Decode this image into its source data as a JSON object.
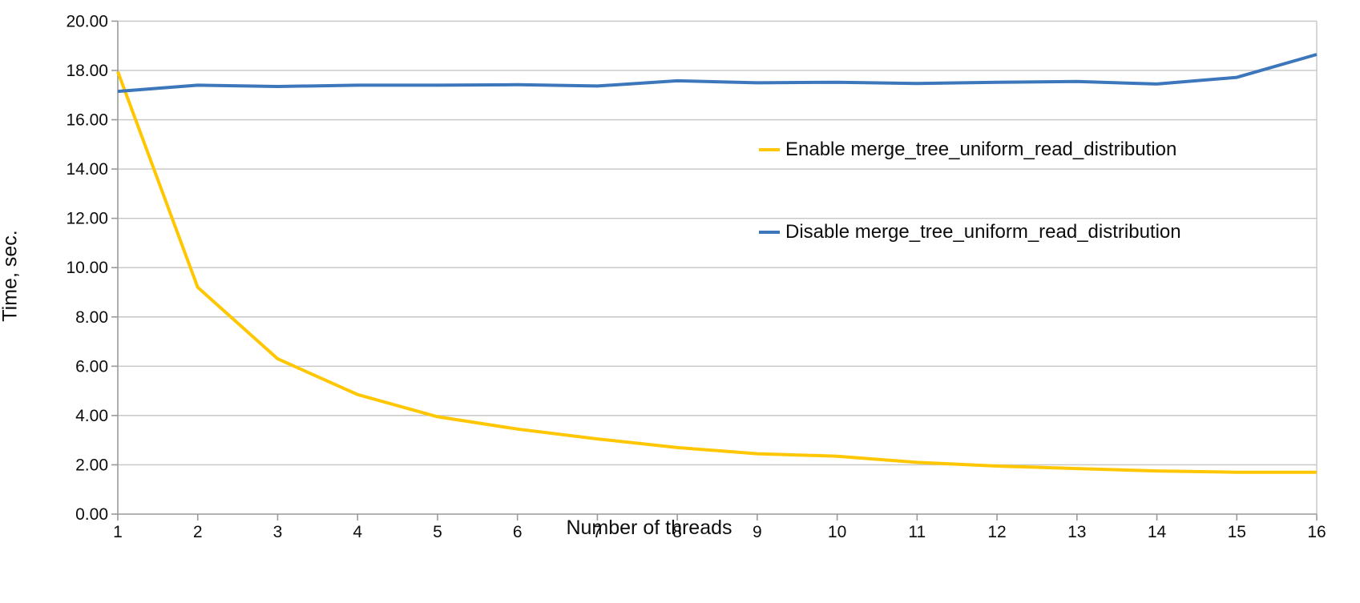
{
  "chart_data": {
    "type": "line",
    "title": "",
    "xlabel": "Number of threads",
    "ylabel": "Time, sec.",
    "x": [
      1,
      2,
      3,
      4,
      5,
      6,
      7,
      8,
      9,
      10,
      11,
      12,
      13,
      14,
      15,
      16
    ],
    "x_tick_labels": [
      "1",
      "2",
      "3",
      "4",
      "5",
      "6",
      "7",
      "8",
      "9",
      "10",
      "11",
      "12",
      "13",
      "14",
      "15",
      "16"
    ],
    "y_tick_labels": [
      "0.00",
      "2.00",
      "4.00",
      "6.00",
      "8.00",
      "10.00",
      "12.00",
      "14.00",
      "16.00",
      "18.00",
      "20.00"
    ],
    "ylim": [
      0,
      20
    ],
    "y_tick_step": 2,
    "grid": "horizontal",
    "legend_position": "inside-right",
    "series": [
      {
        "name": "Enable merge_tree_uniform_read_distribution",
        "color": "#ffc702",
        "values": [
          17.95,
          9.2,
          6.3,
          4.85,
          3.95,
          3.45,
          3.05,
          2.7,
          2.45,
          2.35,
          2.1,
          1.95,
          1.85,
          1.75,
          1.7,
          1.7
        ]
      },
      {
        "name": "Disable merge_tree_uniform_read_distribution",
        "color": "#3c76bb",
        "values": [
          17.15,
          17.4,
          17.35,
          17.4,
          17.4,
          17.42,
          17.37,
          17.58,
          17.5,
          17.52,
          17.47,
          17.52,
          17.55,
          17.45,
          17.72,
          18.65
        ]
      }
    ],
    "colors": {
      "gridline": "#c6c6c6",
      "axis": "#9a9a9a",
      "tick_text": "#0d0d0d"
    }
  }
}
